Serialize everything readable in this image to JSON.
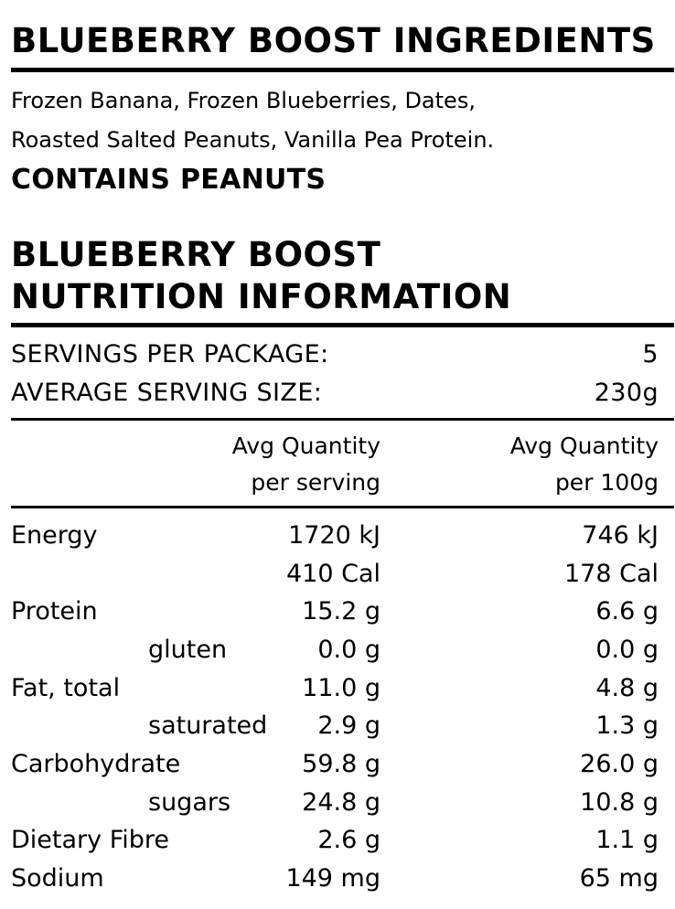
{
  "ingredients": {
    "title": "BLUEBERRY BOOST INGREDIENTS",
    "line1": "Frozen Banana, Frozen Blueberries, Dates,",
    "line2": "Roasted Salted Peanuts, Vanilla Pea Protein.",
    "allergen": "CONTAINS PEANUTS"
  },
  "nutrition": {
    "title_line1": "BLUEBERRY BOOST",
    "title_line2": "NUTRITION INFORMATION",
    "servings_label": "SERVINGS PER PACKAGE:",
    "servings_value": "5",
    "serving_size_label": "AVERAGE SERVING SIZE:",
    "serving_size_value": "230g",
    "col_serving": [
      "Avg Quantity",
      "per serving"
    ],
    "col_100g": [
      "Avg Quantity",
      "per 100g"
    ],
    "rows": [
      {
        "label": "Energy",
        "indent": false,
        "serving": "1720 kJ",
        "per100": "746 kJ"
      },
      {
        "label": "",
        "indent": false,
        "serving": "410 Cal",
        "per100": "178 Cal"
      },
      {
        "label": "Protein",
        "indent": false,
        "serving": "15.2 g",
        "per100": "6.6 g"
      },
      {
        "label": "gluten",
        "indent": true,
        "serving": "0.0 g",
        "per100": "0.0 g"
      },
      {
        "label": "Fat, total",
        "indent": false,
        "serving": "11.0 g",
        "per100": "4.8 g"
      },
      {
        "label": "saturated",
        "indent": true,
        "serving": "2.9 g",
        "per100": "1.3 g"
      },
      {
        "label": "Carbohydrate",
        "indent": false,
        "serving": "59.8 g",
        "per100": "26.0 g"
      },
      {
        "label": "sugars",
        "indent": true,
        "serving": "24.8 g",
        "per100": "10.8 g"
      },
      {
        "label": "Dietary Fibre",
        "indent": false,
        "serving": "2.6 g",
        "per100": "1.1 g"
      },
      {
        "label": "Sodium",
        "indent": false,
        "serving": "149 mg",
        "per100": "65 mg"
      }
    ]
  }
}
